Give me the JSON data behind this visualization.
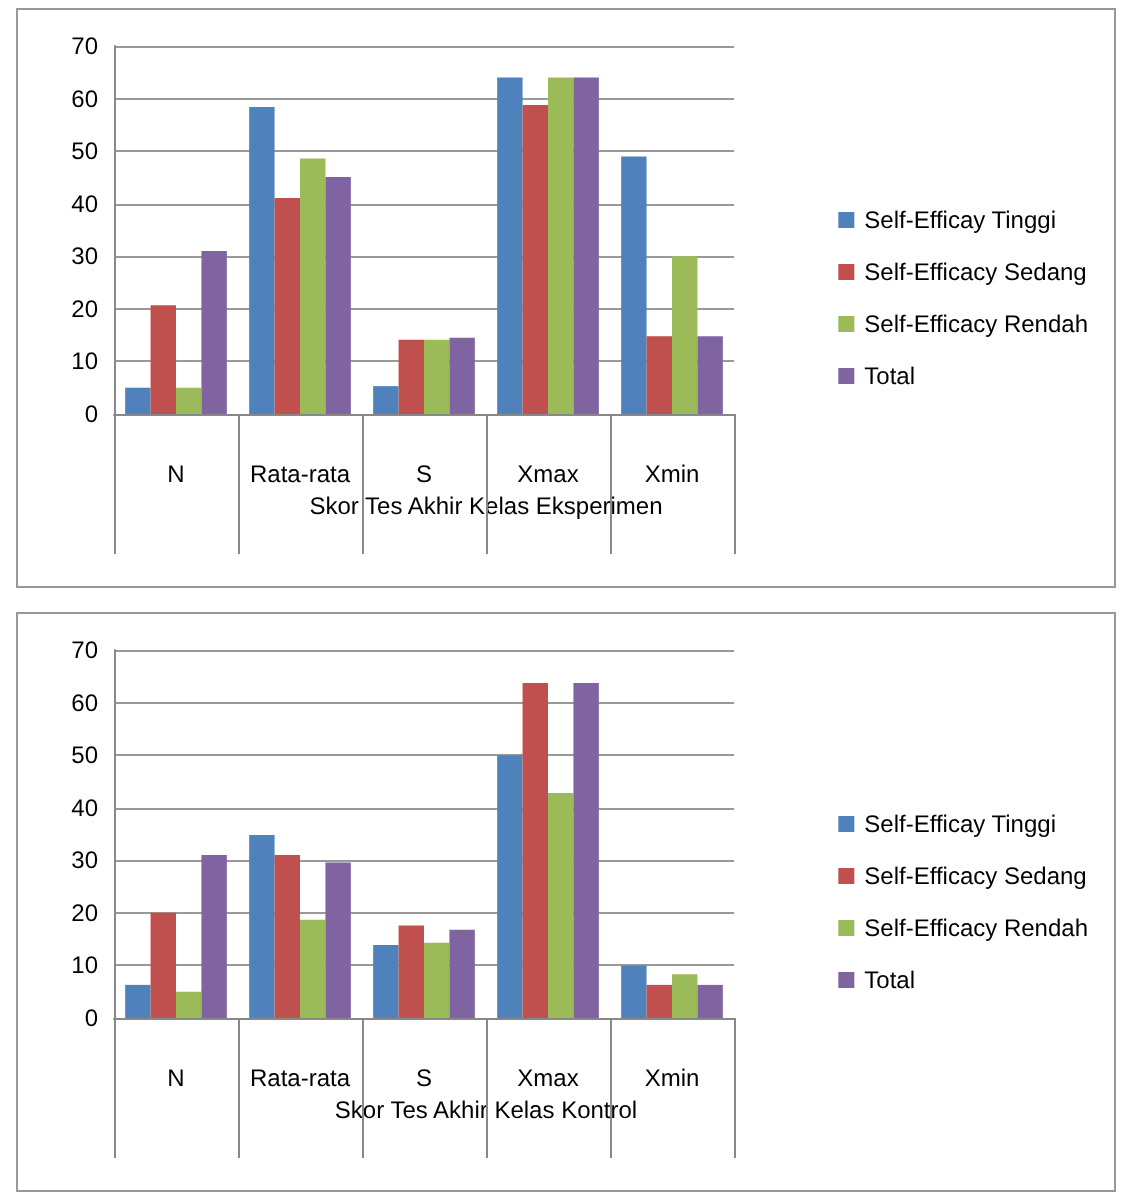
{
  "chart_data": [
    {
      "type": "bar",
      "categories": [
        "N",
        "Rata-rata",
        "S",
        "Xmax",
        "Xmin"
      ],
      "xlabel": "Skor Tes Akhir Kelas Eksperimen",
      "ylim": [
        0,
        70
      ],
      "yticks": [
        0,
        10,
        20,
        30,
        40,
        50,
        60,
        70
      ],
      "grid": "y",
      "legend": "right",
      "series": [
        {
          "name": "Self-Efficay Tinggi",
          "color": "#4f81bd",
          "values": [
            5,
            58.4,
            5.3,
            64,
            49
          ]
        },
        {
          "name": "Self-Efficacy Sedang",
          "color": "#c0504d",
          "values": [
            20.7,
            41.1,
            14.1,
            58.8,
            14.8
          ]
        },
        {
          "name": "Self-Efficacy Rendah",
          "color": "#9bbb59",
          "values": [
            5,
            48.6,
            14.1,
            64,
            30
          ]
        },
        {
          "name": "Total",
          "color": "#8064a2",
          "values": [
            31,
            45.1,
            14.5,
            64,
            14.8
          ]
        }
      ]
    },
    {
      "type": "bar",
      "categories": [
        "N",
        "Rata-rata",
        "S",
        "Xmax",
        "Xmin"
      ],
      "xlabel": "Skor Tes Akhir Kelas Kontrol",
      "ylim": [
        0,
        70
      ],
      "yticks": [
        0,
        10,
        20,
        30,
        40,
        50,
        60,
        70
      ],
      "grid": "y",
      "legend": "right",
      "series": [
        {
          "name": "Self-Efficay Tinggi",
          "color": "#4f81bd",
          "values": [
            6.3,
            34.8,
            13.9,
            50,
            10
          ]
        },
        {
          "name": "Self-Efficacy Sedang",
          "color": "#c0504d",
          "values": [
            20,
            31,
            17.6,
            63.7,
            6.3
          ]
        },
        {
          "name": "Self-Efficacy Rendah",
          "color": "#9bbb59",
          "values": [
            5,
            18.7,
            14.3,
            42.8,
            8.3
          ]
        },
        {
          "name": "Total",
          "color": "#8064a2",
          "values": [
            31,
            29.6,
            16.8,
            63.7,
            6.3
          ]
        }
      ]
    }
  ]
}
